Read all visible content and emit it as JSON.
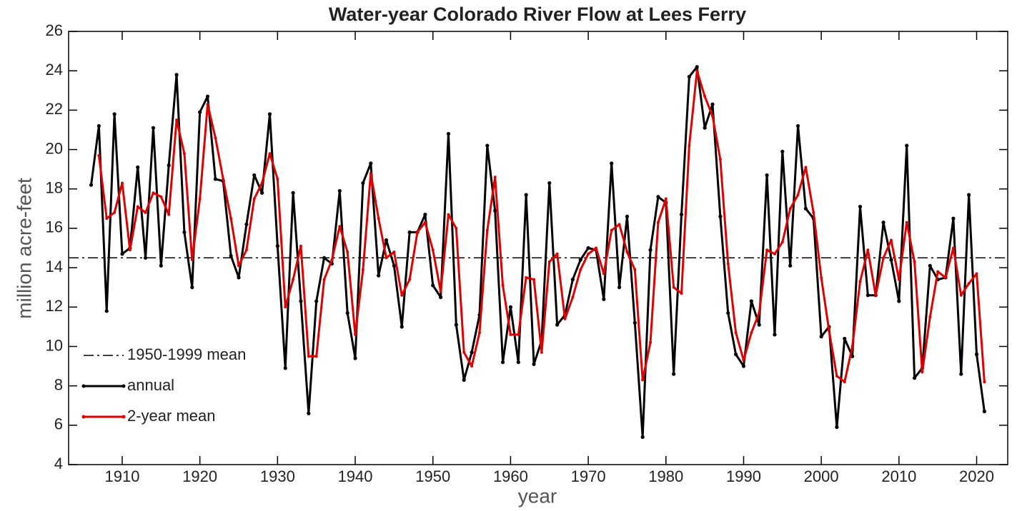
{
  "chart_data": {
    "type": "line",
    "title": "Water-year Colorado River Flow at Lees Ferry",
    "xlabel": "year",
    "ylabel": "million acre-feet",
    "xlim": [
      1903.1,
      2024
    ],
    "xticks": [
      1910,
      1920,
      1930,
      1940,
      1950,
      1960,
      1970,
      1980,
      1990,
      2000,
      2010,
      2020
    ],
    "ylim": [
      4,
      26
    ],
    "yticks": [
      4,
      6,
      8,
      10,
      12,
      14,
      16,
      18,
      20,
      22,
      24,
      26
    ],
    "legend": "lower left",
    "hlines": [
      {
        "name": "1950-1999 mean",
        "value": 14.5,
        "color": "#000000"
      }
    ],
    "series": [
      {
        "name": "annual",
        "color": "#000000",
        "x": [
          1906,
          1907,
          1908,
          1909,
          1910,
          1911,
          1912,
          1913,
          1914,
          1915,
          1916,
          1917,
          1918,
          1919,
          1920,
          1921,
          1922,
          1923,
          1924,
          1925,
          1926,
          1927,
          1928,
          1929,
          1930,
          1931,
          1932,
          1933,
          1934,
          1935,
          1936,
          1937,
          1938,
          1939,
          1940,
          1941,
          1942,
          1943,
          1944,
          1945,
          1946,
          1947,
          1948,
          1949,
          1950,
          1951,
          1952,
          1953,
          1954,
          1955,
          1956,
          1957,
          1958,
          1959,
          1960,
          1961,
          1962,
          1963,
          1964,
          1965,
          1966,
          1967,
          1968,
          1969,
          1970,
          1971,
          1972,
          1973,
          1974,
          1975,
          1976,
          1977,
          1978,
          1979,
          1980,
          1981,
          1982,
          1983,
          1984,
          1985,
          1986,
          1987,
          1988,
          1989,
          1990,
          1991,
          1992,
          1993,
          1994,
          1995,
          1996,
          1997,
          1998,
          1999,
          2000,
          2001,
          2002,
          2003,
          2004,
          2005,
          2006,
          2007,
          2008,
          2009,
          2010,
          2011,
          2012,
          2013,
          2014,
          2015,
          2016,
          2017,
          2018,
          2019,
          2020,
          2021
        ],
        "values": [
          18.2,
          21.2,
          11.8,
          21.8,
          14.7,
          15.0,
          19.1,
          14.5,
          21.1,
          14.1,
          19.2,
          23.8,
          15.8,
          13.0,
          21.9,
          22.7,
          18.5,
          18.4,
          14.6,
          13.5,
          16.2,
          18.7,
          17.8,
          21.8,
          15.1,
          8.9,
          17.8,
          12.3,
          6.6,
          12.3,
          14.5,
          14.2,
          17.9,
          11.7,
          9.4,
          18.3,
          19.3,
          13.6,
          15.4,
          14.1,
          11.0,
          15.8,
          15.8,
          16.7,
          13.1,
          12.5,
          20.8,
          11.1,
          8.3,
          9.7,
          11.6,
          20.2,
          16.9,
          9.2,
          12.0,
          9.2,
          17.7,
          9.1,
          10.3,
          18.3,
          11.1,
          11.6,
          13.4,
          14.4,
          15.0,
          14.9,
          12.4,
          19.3,
          13.0,
          16.6,
          11.2,
          5.4,
          14.9,
          17.6,
          17.3,
          8.6,
          16.7,
          23.7,
          24.2,
          21.1,
          22.3,
          16.6,
          11.7,
          9.6,
          9.0,
          12.3,
          11.1,
          18.7,
          10.6,
          19.9,
          14.1,
          21.2,
          17.0,
          16.5,
          10.5,
          11.0,
          5.9,
          10.4,
          9.5,
          17.1,
          12.6,
          12.6,
          16.3,
          14.4,
          12.3,
          20.2,
          8.4,
          8.9,
          14.1,
          13.4,
          13.5,
          16.5,
          8.6,
          17.7,
          9.6,
          6.7
        ]
      },
      {
        "name": "2-year mean",
        "color": "#e00000",
        "x": [
          1907,
          1908,
          1909,
          1910,
          1911,
          1912,
          1913,
          1914,
          1915,
          1916,
          1917,
          1918,
          1919,
          1920,
          1921,
          1922,
          1923,
          1924,
          1925,
          1926,
          1927,
          1928,
          1929,
          1930,
          1931,
          1932,
          1933,
          1934,
          1935,
          1936,
          1937,
          1938,
          1939,
          1940,
          1941,
          1942,
          1943,
          1944,
          1945,
          1946,
          1947,
          1948,
          1949,
          1950,
          1951,
          1952,
          1953,
          1954,
          1955,
          1956,
          1957,
          1958,
          1959,
          1960,
          1961,
          1962,
          1963,
          1964,
          1965,
          1966,
          1967,
          1968,
          1969,
          1970,
          1971,
          1972,
          1973,
          1974,
          1975,
          1976,
          1977,
          1978,
          1979,
          1980,
          1981,
          1982,
          1983,
          1984,
          1985,
          1986,
          1987,
          1988,
          1989,
          1990,
          1991,
          1992,
          1993,
          1994,
          1995,
          1996,
          1997,
          1998,
          1999,
          2000,
          2001,
          2002,
          2003,
          2004,
          2005,
          2006,
          2007,
          2008,
          2009,
          2010,
          2011,
          2012,
          2013,
          2014,
          2015,
          2016,
          2017,
          2018,
          2019,
          2020,
          2021
        ],
        "values": [
          19.7,
          16.5,
          16.8,
          18.3,
          14.9,
          17.1,
          16.8,
          17.8,
          17.6,
          16.7,
          21.5,
          19.8,
          14.4,
          17.5,
          22.3,
          20.6,
          18.5,
          16.5,
          14.1,
          14.9,
          17.5,
          18.3,
          19.8,
          18.5,
          12.0,
          13.4,
          15.1,
          9.5,
          9.5,
          13.4,
          14.4,
          16.1,
          14.8,
          10.6,
          13.9,
          18.8,
          16.5,
          14.5,
          14.8,
          12.6,
          13.4,
          15.8,
          16.3,
          14.9,
          12.8,
          16.7,
          16.0,
          9.7,
          9.0,
          10.7,
          15.9,
          18.6,
          13.1,
          10.6,
          10.6,
          13.5,
          13.4,
          9.7,
          14.3,
          14.7,
          11.4,
          12.5,
          13.9,
          14.7,
          15.0,
          13.7,
          15.9,
          16.2,
          14.8,
          13.9,
          8.3,
          10.2,
          16.3,
          17.5,
          13.0,
          12.7,
          20.2,
          24.0,
          22.7,
          21.7,
          19.5,
          14.2,
          10.7,
          9.3,
          10.7,
          11.7,
          14.9,
          14.7,
          15.3,
          17.0,
          17.7,
          19.1,
          16.8,
          13.5,
          10.8,
          8.5,
          8.2,
          10.0,
          13.3,
          14.9,
          12.6,
          14.5,
          15.4,
          13.4,
          16.3,
          14.3,
          8.7,
          11.5,
          13.8,
          13.5,
          15.0,
          12.6,
          13.2,
          13.7,
          8.2
        ]
      }
    ]
  }
}
